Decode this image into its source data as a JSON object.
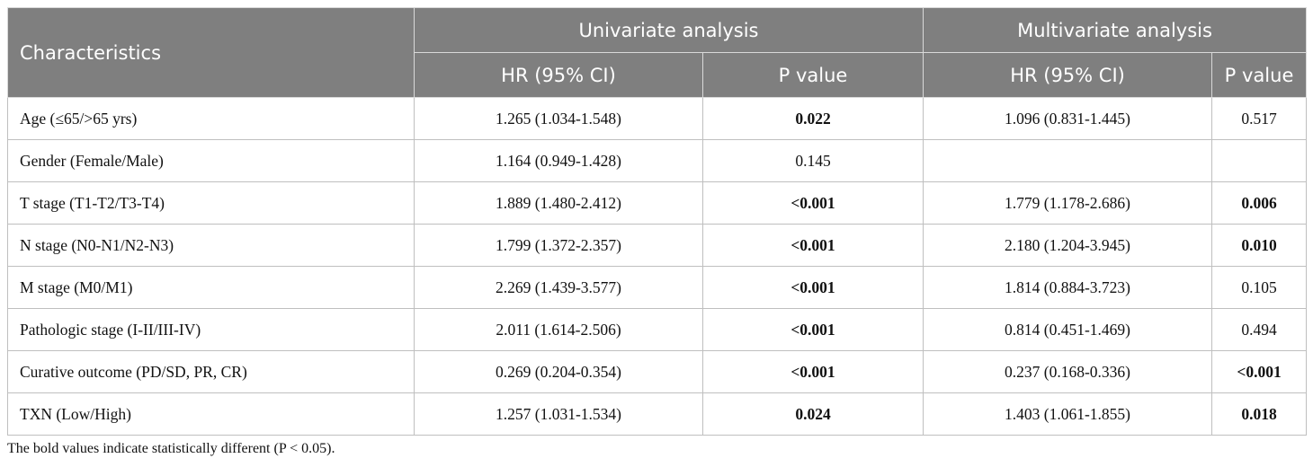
{
  "table": {
    "header": {
      "characteristics": "Characteristics",
      "univariate": "Univariate analysis",
      "multivariate": "Multivariate analysis",
      "hr": "HR (95% CI)",
      "p": "P value"
    },
    "rows": [
      {
        "label": "Age (≤65/>65 yrs)",
        "uni_hr": "1.265 (1.034-1.548)",
        "uni_p": "0.022",
        "uni_p_bold": true,
        "multi_hr": "1.096 (0.831-1.445)",
        "multi_p": "0.517",
        "multi_p_bold": false
      },
      {
        "label": "Gender (Female/Male)",
        "uni_hr": "1.164 (0.949-1.428)",
        "uni_p": "0.145",
        "uni_p_bold": false,
        "multi_hr": "",
        "multi_p": "",
        "multi_p_bold": false
      },
      {
        "label": "T stage (T1-T2/T3-T4)",
        "uni_hr": "1.889 (1.480-2.412)",
        "uni_p": "<0.001",
        "uni_p_bold": true,
        "multi_hr": "1.779 (1.178-2.686)",
        "multi_p": "0.006",
        "multi_p_bold": true
      },
      {
        "label": "N stage (N0-N1/N2-N3)",
        "uni_hr": "1.799 (1.372-2.357)",
        "uni_p": "<0.001",
        "uni_p_bold": true,
        "multi_hr": "2.180 (1.204-3.945)",
        "multi_p": "0.010",
        "multi_p_bold": true
      },
      {
        "label": "M stage (M0/M1)",
        "uni_hr": "2.269 (1.439-3.577)",
        "uni_p": "<0.001",
        "uni_p_bold": true,
        "multi_hr": "1.814 (0.884-3.723)",
        "multi_p": "0.105",
        "multi_p_bold": false
      },
      {
        "label": "Pathologic stage (I-II/III-IV)",
        "uni_hr": "2.011 (1.614-2.506)",
        "uni_p": "<0.001",
        "uni_p_bold": true,
        "multi_hr": "0.814 (0.451-1.469)",
        "multi_p": "0.494",
        "multi_p_bold": false
      },
      {
        "label": "Curative outcome (PD/SD, PR, CR)",
        "uni_hr": "0.269 (0.204-0.354)",
        "uni_p": "<0.001",
        "uni_p_bold": true,
        "multi_hr": "0.237 (0.168-0.336)",
        "multi_p": "<0.001",
        "multi_p_bold": true
      },
      {
        "label": "TXN (Low/High)",
        "uni_hr": "1.257 (1.031-1.534)",
        "uni_p": "0.024",
        "uni_p_bold": true,
        "multi_hr": "1.403 (1.061-1.855)",
        "multi_p": "0.018",
        "multi_p_bold": true
      }
    ]
  },
  "footnote": "The bold values indicate statistically different (P < 0.05).",
  "colors": {
    "header_bg": "#7f7f7f",
    "header_text": "#ffffff",
    "grid": "#bfbfbf"
  }
}
